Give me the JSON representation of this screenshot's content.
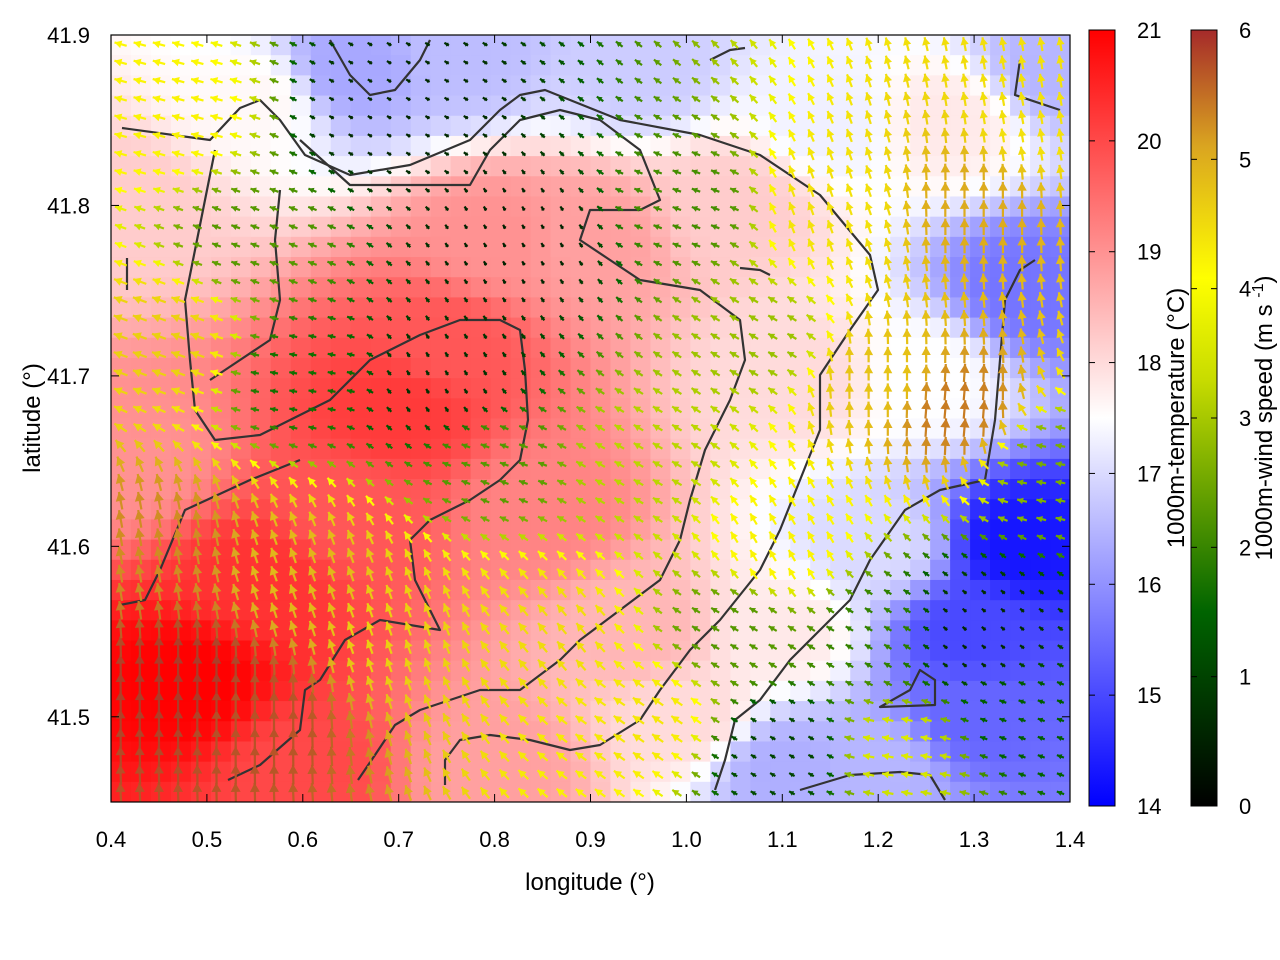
{
  "chart_data": {
    "type": "heatmap",
    "xlabel": "longitude (°)",
    "ylabel": "latitude (°)",
    "xlim": [
      0.4,
      1.4
    ],
    "ylim": [
      41.45,
      41.9
    ],
    "xticks": [
      "0.4",
      "0.5",
      "0.6",
      "0.7",
      "0.8",
      "0.9",
      "1.0",
      "1.1",
      "1.2",
      "1.3",
      "1.4"
    ],
    "yticks": [
      "41.5",
      "41.6",
      "41.7",
      "41.8",
      "41.9"
    ],
    "grid": false,
    "field": {
      "name": "1000m-temperature (°C)",
      "range": [
        14,
        21
      ],
      "ticks": [
        "14",
        "15",
        "16",
        "17",
        "18",
        "19",
        "20",
        "21"
      ],
      "colormap": [
        "#0000ff",
        "#ffffff",
        "#ff0000"
      ],
      "anchors": [
        {
          "x": 0.48,
          "y": 41.52,
          "t": 21.0
        },
        {
          "x": 0.55,
          "y": 41.58,
          "t": 20.3
        },
        {
          "x": 0.7,
          "y": 41.68,
          "t": 20.2
        },
        {
          "x": 0.75,
          "y": 41.72,
          "t": 19.8
        },
        {
          "x": 0.8,
          "y": 41.78,
          "t": 19.0
        },
        {
          "x": 0.9,
          "y": 41.78,
          "t": 18.8
        },
        {
          "x": 1.05,
          "y": 41.8,
          "t": 18.2
        },
        {
          "x": 0.65,
          "y": 41.62,
          "t": 19.8
        },
        {
          "x": 0.85,
          "y": 41.62,
          "t": 19.2
        },
        {
          "x": 0.95,
          "y": 41.55,
          "t": 18.5
        },
        {
          "x": 1.0,
          "y": 41.5,
          "t": 18.0
        },
        {
          "x": 0.42,
          "y": 41.65,
          "t": 19.0
        },
        {
          "x": 0.42,
          "y": 41.8,
          "t": 18.2
        },
        {
          "x": 0.55,
          "y": 41.86,
          "t": 17.6
        },
        {
          "x": 0.65,
          "y": 41.88,
          "t": 16.3
        },
        {
          "x": 0.77,
          "y": 41.89,
          "t": 16.6
        },
        {
          "x": 0.95,
          "y": 41.88,
          "t": 16.8
        },
        {
          "x": 1.15,
          "y": 41.85,
          "t": 17.3
        },
        {
          "x": 1.12,
          "y": 41.7,
          "t": 18.0
        },
        {
          "x": 1.1,
          "y": 41.55,
          "t": 17.8
        },
        {
          "x": 1.1,
          "y": 41.47,
          "t": 16.4
        },
        {
          "x": 1.2,
          "y": 41.6,
          "t": 17.0
        },
        {
          "x": 1.3,
          "y": 41.55,
          "t": 15.0
        },
        {
          "x": 1.35,
          "y": 41.6,
          "t": 14.3
        },
        {
          "x": 1.3,
          "y": 41.5,
          "t": 15.4
        },
        {
          "x": 1.36,
          "y": 41.75,
          "t": 15.6
        },
        {
          "x": 1.25,
          "y": 41.7,
          "t": 17.5
        },
        {
          "x": 1.28,
          "y": 41.85,
          "t": 17.8
        },
        {
          "x": 1.38,
          "y": 41.88,
          "t": 16.5
        },
        {
          "x": 1.2,
          "y": 41.47,
          "t": 16.5
        },
        {
          "x": 0.6,
          "y": 41.47,
          "t": 20.0
        },
        {
          "x": 0.8,
          "y": 41.47,
          "t": 18.8
        }
      ]
    },
    "vectors": {
      "name": "1000m-wind speed (m s-1)",
      "range": [
        0,
        6
      ],
      "ticks": [
        "0",
        "1",
        "2",
        "3",
        "4",
        "5",
        "6"
      ],
      "colormap": [
        "#000000",
        "#006400",
        "#ffff00",
        "#daa520",
        "#a52a2a"
      ],
      "anchors": [
        {
          "x": 0.48,
          "y": 41.52,
          "speed": 5.8,
          "dir": 90
        },
        {
          "x": 0.55,
          "y": 41.5,
          "speed": 5.5,
          "dir": 90
        },
        {
          "x": 0.45,
          "y": 41.6,
          "speed": 4.8,
          "dir": 100
        },
        {
          "x": 0.6,
          "y": 41.58,
          "speed": 4.2,
          "dir": 110
        },
        {
          "x": 0.7,
          "y": 41.55,
          "speed": 3.8,
          "dir": 110
        },
        {
          "x": 0.85,
          "y": 41.55,
          "speed": 3.6,
          "dir": 130
        },
        {
          "x": 0.95,
          "y": 41.5,
          "speed": 3.4,
          "dir": 145
        },
        {
          "x": 0.45,
          "y": 41.72,
          "speed": 3.8,
          "dir": 160
        },
        {
          "x": 0.45,
          "y": 41.85,
          "speed": 3.2,
          "dir": 165
        },
        {
          "x": 0.55,
          "y": 41.78,
          "speed": 2.0,
          "dir": 160
        },
        {
          "x": 0.6,
          "y": 41.7,
          "speed": 1.6,
          "dir": 170
        },
        {
          "x": 0.75,
          "y": 41.7,
          "speed": 0.7,
          "dir": 120
        },
        {
          "x": 0.82,
          "y": 41.78,
          "speed": 0.5,
          "dir": 120
        },
        {
          "x": 0.7,
          "y": 41.85,
          "speed": 0.6,
          "dir": 150
        },
        {
          "x": 0.8,
          "y": 41.65,
          "speed": 2.0,
          "dir": 160
        },
        {
          "x": 0.95,
          "y": 41.65,
          "speed": 2.6,
          "dir": 150
        },
        {
          "x": 1.0,
          "y": 41.8,
          "speed": 1.9,
          "dir": 160
        },
        {
          "x": 1.08,
          "y": 41.72,
          "speed": 2.4,
          "dir": 150
        },
        {
          "x": 1.1,
          "y": 41.6,
          "speed": 3.2,
          "dir": 120
        },
        {
          "x": 1.15,
          "y": 41.8,
          "speed": 3.5,
          "dir": 110
        },
        {
          "x": 1.2,
          "y": 41.7,
          "speed": 4.0,
          "dir": 90
        },
        {
          "x": 1.3,
          "y": 41.8,
          "speed": 4.4,
          "dir": 90
        },
        {
          "x": 1.28,
          "y": 41.68,
          "speed": 5.0,
          "dir": 85
        },
        {
          "x": 1.37,
          "y": 41.85,
          "speed": 3.5,
          "dir": 100
        },
        {
          "x": 1.2,
          "y": 41.55,
          "speed": 1.8,
          "dir": 150
        },
        {
          "x": 1.3,
          "y": 41.55,
          "speed": 0.6,
          "dir": 140
        },
        {
          "x": 1.35,
          "y": 41.5,
          "speed": 1.4,
          "dir": 160
        },
        {
          "x": 1.1,
          "y": 41.48,
          "speed": 1.0,
          "dir": 150
        },
        {
          "x": 1.05,
          "y": 41.55,
          "speed": 2.0,
          "dir": 150
        },
        {
          "x": 1.38,
          "y": 41.65,
          "speed": 2.2,
          "dir": 170
        },
        {
          "x": 1.22,
          "y": 41.48,
          "speed": 2.8,
          "dir": 170
        }
      ]
    }
  }
}
